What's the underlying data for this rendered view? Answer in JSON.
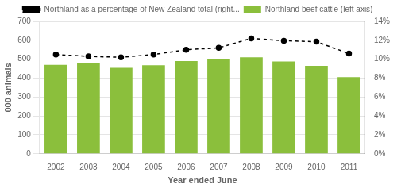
{
  "chart_data": {
    "type": "bar",
    "xlabel": "Year ended June",
    "ylabel": "000 animals",
    "categories": [
      "2002",
      "2003",
      "2004",
      "2005",
      "2006",
      "2007",
      "2008",
      "2009",
      "2010",
      "2011"
    ],
    "series": [
      {
        "name": "Northland beef cattle (left axis)",
        "type": "bar",
        "color": "#8BBF3C",
        "values": [
          470,
          480,
          455,
          468,
          490,
          500,
          510,
          488,
          465,
          405
        ]
      },
      {
        "name": "Northland as a percentage of New Zealand total (right...",
        "type": "line",
        "color": "#000000",
        "axis": "y2",
        "line_style": "dashed",
        "marker": "circle",
        "values": [
          10.5,
          10.3,
          10.2,
          10.5,
          11.0,
          11.2,
          12.2,
          11.95,
          11.85,
          10.6
        ]
      }
    ],
    "ylim": [
      0,
      700
    ],
    "yticks": [
      0,
      100,
      200,
      300,
      400,
      500,
      600,
      700
    ],
    "y2lim": [
      0,
      14
    ],
    "y2ticks": [
      {
        "value": 0,
        "label": "0%"
      },
      {
        "value": 2,
        "label": "2%"
      },
      {
        "value": 4,
        "label": "4%"
      },
      {
        "value": 6,
        "label": "6%"
      },
      {
        "value": 8,
        "label": "8%"
      },
      {
        "value": 10,
        "label": "10%"
      },
      {
        "value": 12,
        "label": "12%"
      },
      {
        "value": 14,
        "label": "14%"
      }
    ],
    "grid": true,
    "legend": "top"
  }
}
